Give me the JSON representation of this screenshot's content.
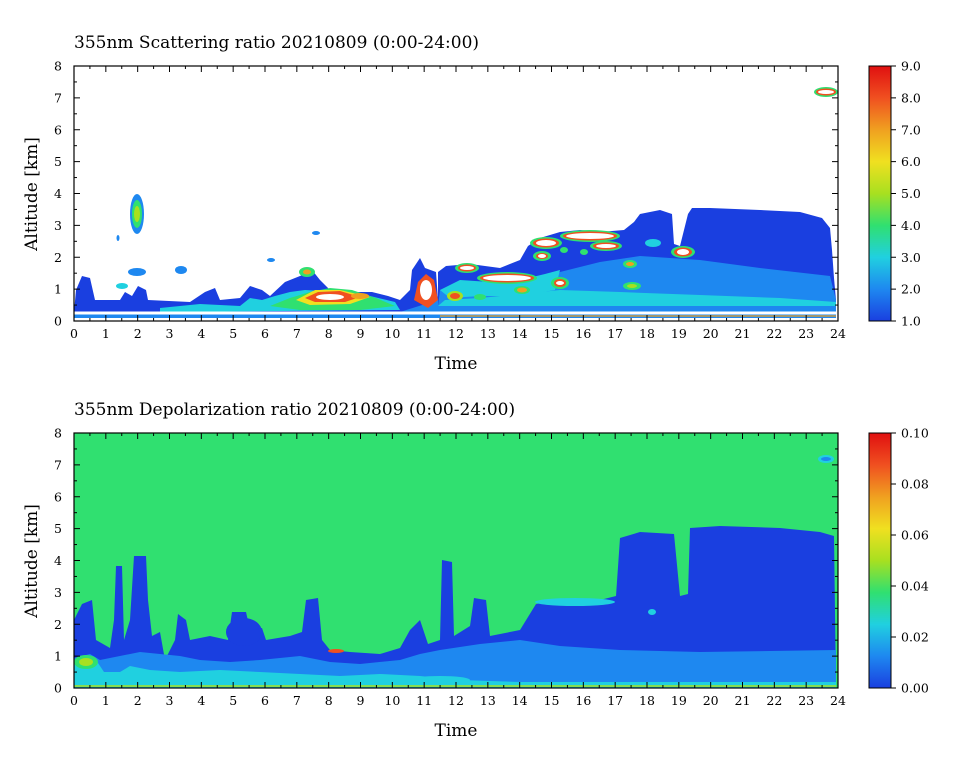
{
  "panels": [
    {
      "title": "355nm Scattering ratio  20210809 (0:00-24:00)",
      "xlabel": "Time",
      "ylabel": "Altitude [km]",
      "x_ticks": [
        "0",
        "1",
        "2",
        "3",
        "4",
        "5",
        "6",
        "7",
        "8",
        "9",
        "10",
        "11",
        "12",
        "13",
        "14",
        "15",
        "16",
        "17",
        "18",
        "19",
        "20",
        "21",
        "22",
        "23",
        "24"
      ],
      "y_ticks": [
        "0",
        "1",
        "2",
        "3",
        "4",
        "5",
        "6",
        "7",
        "8"
      ],
      "colorbar_ticks": [
        "1.0",
        "2.0",
        "3.0",
        "4.0",
        "5.0",
        "6.0",
        "7.0",
        "8.0",
        "9.0"
      ]
    },
    {
      "title": "355nm Depolarization ratio  20210809 (0:00-24:00)",
      "xlabel": "Time",
      "ylabel": "Altitude [km]",
      "x_ticks": [
        "0",
        "1",
        "2",
        "3",
        "4",
        "5",
        "6",
        "7",
        "8",
        "9",
        "10",
        "11",
        "12",
        "13",
        "14",
        "15",
        "16",
        "17",
        "18",
        "19",
        "20",
        "21",
        "22",
        "23",
        "24"
      ],
      "y_ticks": [
        "0",
        "1",
        "2",
        "3",
        "4",
        "5",
        "6",
        "7",
        "8"
      ],
      "colorbar_ticks": [
        "0.00",
        "0.02",
        "0.04",
        "0.06",
        "0.08",
        "0.10"
      ]
    }
  ],
  "chart_data": [
    {
      "type": "heatmap",
      "title": "355nm Scattering ratio  20210809 (0:00-24:00)",
      "xlabel": "Time",
      "ylabel": "Altitude [km]",
      "xlim": [
        0,
        24
      ],
      "ylim": [
        0,
        8
      ],
      "colorbar": {
        "min": 1.0,
        "max": 9.0,
        "colors": [
          "#1a3fe0",
          "#1e88f0",
          "#20d0e0",
          "#30e070",
          "#a8e020",
          "#f0e020",
          "#f0a020",
          "#f05020",
          "#e01010"
        ]
      },
      "background_value": "none",
      "regions": [
        {
          "name": "surface layer",
          "x": [
            0,
            24
          ],
          "y": [
            0.2,
            0.5
          ],
          "value": 2.0
        },
        {
          "name": "aerosol layer 0-11h",
          "x": [
            0,
            11
          ],
          "y": [
            0.3,
            1.0
          ],
          "value": 3.5
        },
        {
          "name": "cloud 2h",
          "x": [
            1.9,
            2.2
          ],
          "y": [
            2.8,
            4.0
          ],
          "value": 4.0
        },
        {
          "name": "cloud 7-10h",
          "x": [
            6.5,
            10.0
          ],
          "y": [
            0.4,
            1.7
          ],
          "value": 8.0
        },
        {
          "name": "cloud 11h",
          "x": [
            10.7,
            11.3
          ],
          "y": [
            0.4,
            1.3
          ],
          "value": 9.0
        },
        {
          "name": "aerosol layer 11-24h",
          "x": [
            11,
            24
          ],
          "y": [
            0.3,
            2.0
          ],
          "value": 2.2
        },
        {
          "name": "clouds 14-19h",
          "x": [
            14.0,
            19.5
          ],
          "y": [
            1.0,
            2.9
          ],
          "value": 9.0
        },
        {
          "name": "elevated layer 17-24h",
          "x": [
            17.3,
            23.9
          ],
          "y": [
            1.8,
            3.5
          ],
          "value": 1.5
        },
        {
          "name": "cloud 23.5h",
          "x": [
            23.5,
            24
          ],
          "y": [
            7.0,
            7.3
          ],
          "value": 9.0
        }
      ]
    },
    {
      "type": "heatmap",
      "title": "355nm Depolarization ratio  20210809 (0:00-24:00)",
      "xlabel": "Time",
      "ylabel": "Altitude [km]",
      "xlim": [
        0,
        24
      ],
      "ylim": [
        0,
        8
      ],
      "colorbar": {
        "min": 0.0,
        "max": 0.1,
        "colors": [
          "#1a3fe0",
          "#1e88f0",
          "#20d0e0",
          "#30e070",
          "#a8e020",
          "#f0e020",
          "#f0a020",
          "#f05020",
          "#e01010"
        ]
      },
      "background_value": 0.04,
      "regions": [
        {
          "name": "low layer 0-24h",
          "x": [
            0,
            24
          ],
          "y": [
            0,
            1.5
          ],
          "value": 0.01
        },
        {
          "name": "plume 1-2h",
          "x": [
            1.0,
            2.3
          ],
          "y": [
            0,
            4.1
          ],
          "value": 0.005
        },
        {
          "name": "plume 5h",
          "x": [
            4.6,
            5.8
          ],
          "y": [
            0,
            2.3
          ],
          "value": 0.005
        },
        {
          "name": "plume 11.5h",
          "x": [
            11.3,
            11.9
          ],
          "y": [
            0,
            4.1
          ],
          "value": 0.005
        },
        {
          "name": "block 15-24h",
          "x": [
            14.5,
            24
          ],
          "y": [
            0,
            2.6
          ],
          "value": 0.005
        },
        {
          "name": "elevated layer 17-24h",
          "x": [
            17.0,
            23.9
          ],
          "y": [
            0,
            5.0
          ],
          "value": 0.003
        }
      ]
    }
  ]
}
